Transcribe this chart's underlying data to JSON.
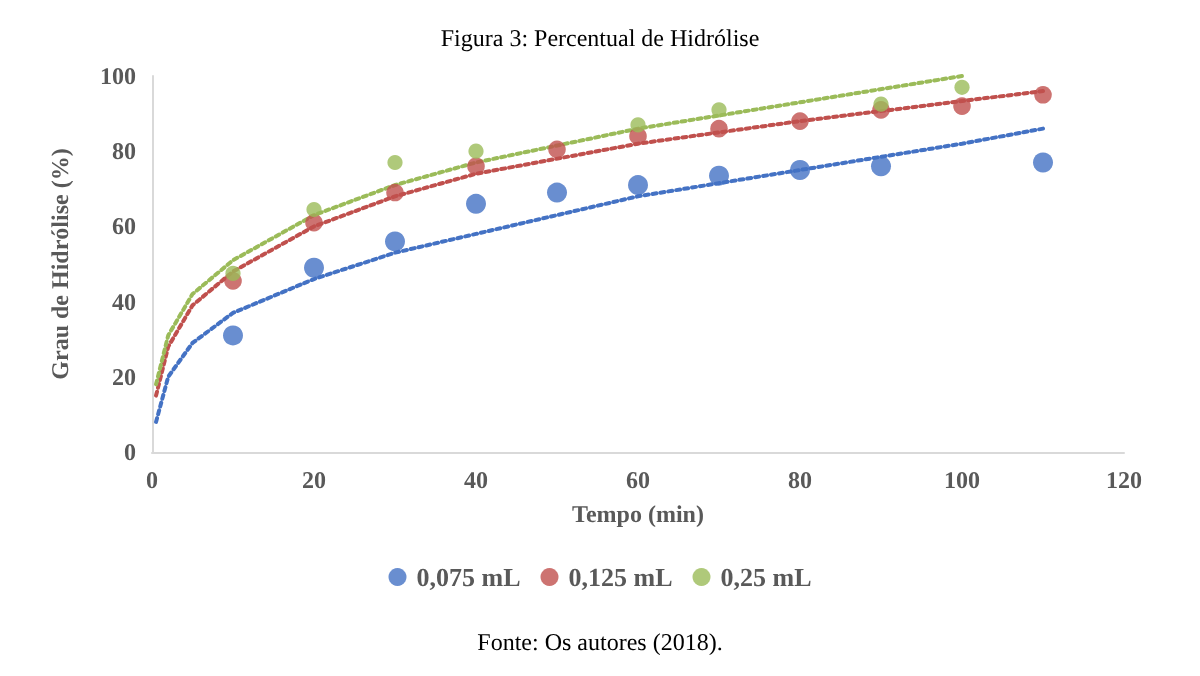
{
  "chart_data": {
    "type": "scatter",
    "title": "Figura 3: Percentual de Hidrólise",
    "xlabel": "Tempo (min)",
    "ylabel": "Grau de Hidrólise (%)",
    "annotations": [
      "Fonte: Os autores (2018)."
    ],
    "xlim": [
      0,
      120
    ],
    "xticks": [
      0,
      20,
      40,
      60,
      80,
      100,
      120
    ],
    "ylim": [
      0,
      100
    ],
    "yticks": [
      0,
      20,
      40,
      60,
      80,
      100
    ],
    "grid": false,
    "legend": "bottom",
    "series": [
      {
        "name": "0,075 mL",
        "marker": "circle",
        "color": "#4472c4",
        "x": [
          10,
          20,
          30,
          40,
          50,
          60,
          70,
          80,
          90,
          110
        ],
        "values": [
          31,
          49,
          56,
          66,
          69,
          71,
          73.5,
          75,
          76,
          77
        ]
      },
      {
        "name": "0,125 mL",
        "marker": "circle",
        "color": "#c0504d",
        "x": [
          10,
          20,
          30,
          40,
          50,
          60,
          70,
          80,
          90,
          100,
          110
        ],
        "values": [
          45.5,
          61,
          69,
          76,
          80.5,
          84,
          86,
          88,
          91,
          92,
          95
        ]
      },
      {
        "name": "0,25 mL",
        "marker": "circle",
        "color": "#9bbb59",
        "x": [
          10,
          20,
          30,
          40,
          60,
          70,
          90,
          100
        ],
        "values": [
          47.5,
          64.5,
          77,
          80,
          87,
          91,
          92.5,
          97
        ]
      },
      {
        "type": "line",
        "marker": "none",
        "line_style": "dotted",
        "color": "#4472c4",
        "x": [
          0.5,
          2,
          5,
          10,
          20,
          30,
          40,
          50,
          60,
          80,
          100,
          110
        ],
        "values": [
          8,
          20,
          29,
          37,
          46,
          53,
          58,
          63,
          68,
          75,
          82,
          86
        ]
      },
      {
        "type": "line",
        "marker": "none",
        "line_style": "dotted",
        "color": "#c0504d",
        "x": [
          0.5,
          2,
          5,
          10,
          20,
          30,
          40,
          60,
          80,
          110
        ],
        "values": [
          15,
          28,
          39,
          48,
          60,
          68,
          74,
          82,
          88,
          96
        ]
      },
      {
        "type": "line",
        "marker": "none",
        "line_style": "dotted",
        "color": "#9bbb59",
        "x": [
          0.5,
          2,
          5,
          10,
          20,
          30,
          40,
          60,
          80,
          100
        ],
        "values": [
          18,
          31,
          42,
          51,
          63,
          71,
          77,
          86,
          93,
          100
        ]
      }
    ]
  }
}
